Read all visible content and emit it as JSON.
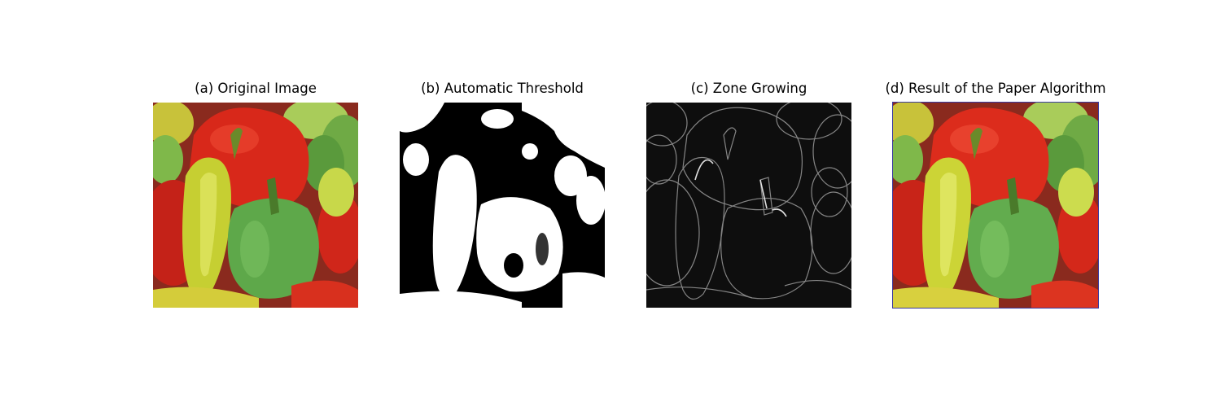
{
  "panels": [
    {
      "title": "(a) Original Image",
      "image": "peppers-original"
    },
    {
      "title": "(b) Automatic Threshold",
      "image": "peppers-binary-threshold"
    },
    {
      "title": "(c) Zone Growing",
      "image": "peppers-edge-map"
    },
    {
      "title": "(d) Result of the Paper Algorithm",
      "image": "peppers-result"
    }
  ],
  "colors": {
    "red_pepper": "#d42a1c",
    "green_pepper": "#5fa84a",
    "yellow_pepper": "#c9d23a",
    "dark": "#111111",
    "white": "#ffffff"
  }
}
